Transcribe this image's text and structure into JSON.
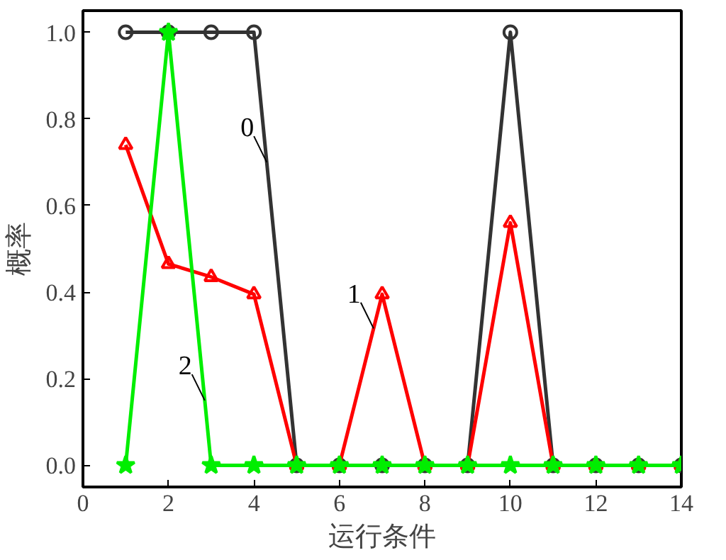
{
  "chart_data": {
    "type": "line",
    "xlabel": "运行条件",
    "ylabel": "概率",
    "x": [
      1,
      2,
      3,
      4,
      5,
      6,
      7,
      8,
      9,
      10,
      11,
      12,
      13,
      14
    ],
    "xlim": [
      0,
      14
    ],
    "ylim": [
      -0.05,
      1.05
    ],
    "xticks": [
      0,
      2,
      4,
      6,
      8,
      10,
      12,
      14
    ],
    "yticks": [
      {
        "value": 0,
        "label": "0.0"
      },
      {
        "value": 0.2,
        "label": "0.2"
      },
      {
        "value": 0.4,
        "label": "0.4"
      },
      {
        "value": 0.6,
        "label": "0.6"
      },
      {
        "value": 0.8,
        "label": "0.8"
      },
      {
        "value": 1,
        "label": "1.0"
      }
    ],
    "grid": false,
    "series": [
      {
        "color": "#333333",
        "marker": "circle",
        "values": [
          1,
          1,
          1,
          1,
          0,
          0,
          0,
          0,
          0,
          1,
          0,
          0,
          0,
          0
        ]
      },
      {
        "color": "#ff0000",
        "marker": "triangle",
        "values": [
          0.74,
          0.465,
          0.435,
          0.395,
          0,
          0,
          0.395,
          0,
          0,
          0.56,
          0,
          0,
          0,
          0
        ]
      },
      {
        "color": "#00ee00",
        "marker": "star",
        "values": [
          0,
          1,
          0,
          0,
          0,
          0,
          0,
          0,
          0,
          0,
          0,
          0,
          0,
          0
        ]
      }
    ],
    "annotations": [
      {
        "text": "0",
        "x": 4.3,
        "y": 0.7
      },
      {
        "text": "1",
        "x": 6.8,
        "y": 0.316
      },
      {
        "text": "2",
        "x": 2.85,
        "y": 0.15
      }
    ]
  }
}
